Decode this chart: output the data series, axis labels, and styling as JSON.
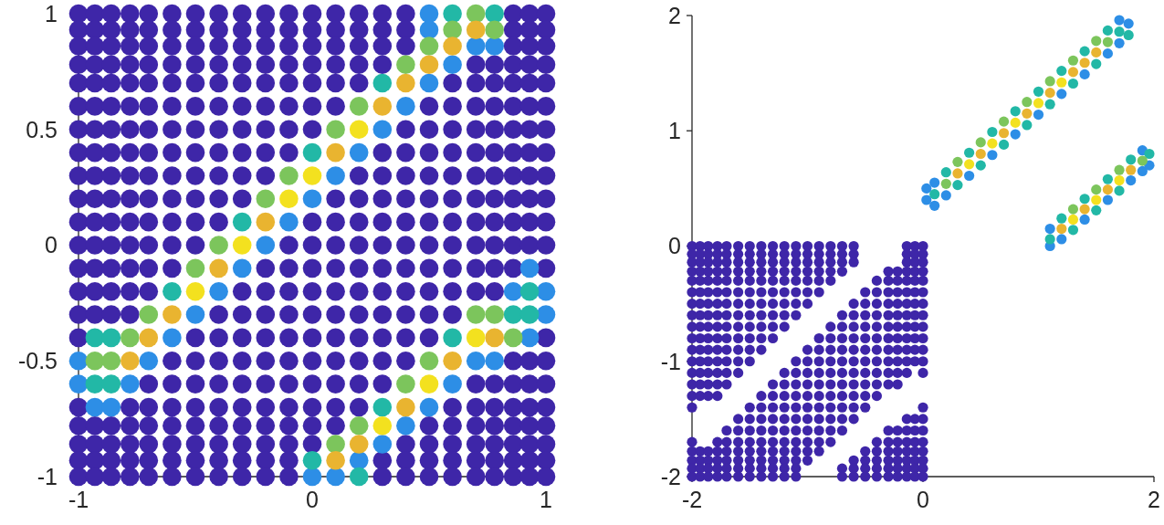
{
  "chart_data": [
    {
      "type": "scatter",
      "xlim": [
        -1,
        1
      ],
      "ylim": [
        -1,
        1
      ],
      "xticks": [
        -1,
        0,
        1
      ],
      "yticks": [
        -1,
        -0.5,
        0,
        0.5,
        1
      ],
      "marker": "circle",
      "series": [
        {
          "color": "#3e26a8",
          "x": [
            -1,
            -0.93,
            -0.86,
            -0.78,
            -0.7,
            -0.6,
            -0.5,
            -0.4,
            -0.3,
            -0.2,
            -0.1,
            0,
            0.1,
            0.2,
            0.3,
            0.4,
            0.86,
            0.93,
            1,
            -1,
            -0.93,
            -0.86,
            -0.78,
            -0.7,
            -0.6,
            -0.5,
            -0.4,
            -0.3,
            -0.2,
            -0.1,
            0,
            0.1,
            0.2,
            0.3,
            0.4,
            0.86,
            0.93,
            1,
            -1,
            -0.93,
            -0.86,
            -0.78,
            -0.7,
            -0.6,
            -0.5,
            -0.4,
            -0.3,
            -0.2,
            -0.1,
            0,
            0.1,
            0.2,
            0.3,
            0.4,
            0.86,
            0.93,
            1,
            -1,
            -0.93,
            -0.86,
            -0.78,
            -0.7,
            -0.6,
            -0.5,
            -0.4,
            -0.3,
            -0.2,
            -0.1,
            0,
            0.1,
            0.2,
            0.3,
            0.7,
            0.78,
            0.86,
            0.93,
            1,
            -1,
            -0.93,
            -0.86,
            -0.78,
            -0.7,
            -0.6,
            -0.5,
            -0.4,
            -0.3,
            -0.2,
            -0.1,
            0,
            0.1,
            0.2,
            0.6,
            0.7,
            0.78,
            0.86,
            0.93,
            1,
            -1,
            -0.93,
            -0.86,
            -0.78,
            -0.7,
            -0.6,
            -0.5,
            -0.4,
            -0.3,
            -0.2,
            -0.1,
            0,
            0.1,
            0.5,
            0.6,
            0.7,
            0.78,
            0.86,
            0.93,
            1,
            -1,
            -0.93,
            -0.86,
            -0.78,
            -0.7,
            -0.6,
            -0.5,
            -0.4,
            -0.3,
            -0.2,
            -0.1,
            0,
            0.4,
            0.5,
            0.6,
            0.7,
            0.78,
            0.86,
            0.93,
            1,
            -1,
            -0.93,
            -0.86,
            -0.78,
            -0.7,
            -0.6,
            -0.5,
            -0.4,
            -0.3,
            -0.2,
            -0.1,
            0.3,
            0.4,
            0.5,
            0.6,
            0.7,
            0.78,
            0.86,
            0.93,
            1,
            -1,
            -0.93,
            -0.86,
            -0.78,
            -0.7,
            -0.6,
            -0.5,
            -0.4,
            -0.3,
            -0.2,
            0.2,
            0.3,
            0.4,
            0.5,
            0.6,
            0.7,
            0.78,
            0.86,
            0.93,
            1,
            -1,
            -0.93,
            -0.86,
            -0.78,
            -0.7,
            -0.6,
            -0.5,
            -0.4,
            -0.3,
            0.1,
            0.2,
            0.3,
            0.4,
            0.5,
            0.6,
            0.7,
            0.78,
            0.86,
            0.93,
            1,
            -1,
            -0.93,
            -0.86,
            -0.78,
            -0.7,
            -0.6,
            -0.5,
            -0.4,
            0,
            0.1,
            0.2,
            0.3,
            0.4,
            0.5,
            0.6,
            0.7,
            0.78,
            0.86,
            0.93,
            1,
            -1,
            -0.93,
            -0.86,
            -0.78,
            -0.7,
            -0.6,
            -0.5,
            -0.1,
            0,
            0.1,
            0.2,
            0.3,
            0.4,
            0.5,
            0.6,
            0.7,
            0.78,
            0.86,
            0.93,
            1,
            -1,
            -0.93,
            -0.86,
            -0.78,
            -0.7,
            -0.6,
            -0.2,
            -0.1,
            0,
            0.1,
            0.2,
            0.3,
            0.4,
            0.5,
            0.6,
            0.7,
            0.78,
            0.86,
            1,
            -1,
            -0.93,
            -0.86,
            -0.78,
            -0.7,
            -0.3,
            -0.2,
            -0.1,
            0,
            0.1,
            0.2,
            0.3,
            0.4,
            0.5,
            0.6,
            0.7,
            0.78,
            -1,
            -0.93,
            -0.86,
            -0.78,
            -0.4,
            -0.3,
            -0.2,
            -0.1,
            0,
            0.1,
            0.2,
            0.3,
            0.4,
            0.5,
            0.6,
            -1,
            -0.5,
            -0.4,
            -0.3,
            -0.2,
            -0.1,
            0,
            0.1,
            0.2,
            0.3,
            0.4,
            0.5,
            1,
            -0.6,
            -0.5,
            -0.4,
            -0.3,
            -0.2,
            -0.1,
            0,
            0.1,
            0.2,
            0.3,
            0.4,
            0.86,
            0.93,
            1,
            -0.7,
            -0.6,
            -0.5,
            -0.4,
            -0.3,
            -0.2,
            -0.1,
            0,
            0.1,
            0.2,
            0.3,
            0.7,
            0.78,
            0.86,
            0.93,
            1,
            -1,
            -0.78,
            -0.7,
            -0.6,
            -0.5,
            -0.4,
            -0.3,
            -0.2,
            -0.1,
            0,
            0.1,
            0.2,
            0.6,
            0.7,
            0.78,
            0.86,
            0.93,
            1,
            -1,
            -0.93,
            -0.86,
            -0.78,
            -0.7,
            -0.6,
            -0.5,
            -0.4,
            -0.3,
            -0.2,
            -0.1,
            0,
            0.1,
            0.5,
            0.6,
            0.7,
            0.78,
            0.86,
            0.93,
            1,
            -1,
            -0.93,
            -0.86,
            -0.78,
            -0.7,
            -0.6,
            -0.5,
            -0.4,
            -0.3,
            -0.2,
            -0.1,
            0,
            0.4,
            0.5,
            0.6,
            0.7,
            0.78,
            0.86,
            0.93,
            1,
            -1,
            -0.93,
            -0.86,
            -0.78,
            -0.7,
            -0.6,
            -0.5,
            -0.4,
            -0.3,
            -0.2,
            -0.1,
            0.3,
            0.4,
            0.5,
            0.6,
            0.7,
            0.78,
            0.86,
            0.93,
            1,
            -1,
            -0.93,
            -0.86,
            -0.78,
            -0.7,
            -0.6,
            -0.5,
            -0.4,
            -0.3,
            -0.2,
            -0.1,
            0.3,
            0.4,
            0.5,
            0.6,
            0.7,
            0.78,
            0.86,
            0.93,
            1
          ],
          "values": [
            1,
            1,
            1,
            1,
            1,
            1,
            1,
            1,
            1,
            1,
            1,
            1,
            1,
            1,
            1,
            1,
            1,
            1,
            1,
            0.93,
            0.93,
            0.93,
            0.93,
            0.93,
            0.93,
            0.93,
            0.93,
            0.93,
            0.93,
            0.93,
            0.93,
            0.93,
            0.93,
            0.93,
            0.93,
            0.93,
            0.93,
            0.93,
            0.86,
            0.86,
            0.86,
            0.86,
            0.86,
            0.86,
            0.86,
            0.86,
            0.86,
            0.86,
            0.86,
            0.86,
            0.86,
            0.86,
            0.86,
            0.86,
            0.86,
            0.86,
            0.86,
            0.78,
            0.78,
            0.78,
            0.78,
            0.78,
            0.78,
            0.78,
            0.78,
            0.78,
            0.78,
            0.78,
            0.78,
            0.78,
            0.78,
            0.78,
            0.78,
            0.78,
            0.78,
            0.78,
            0.78,
            0.7,
            0.7,
            0.7,
            0.7,
            0.7,
            0.7,
            0.7,
            0.7,
            0.7,
            0.7,
            0.7,
            0.7,
            0.7,
            0.7,
            0.7,
            0.7,
            0.7,
            0.7,
            0.7,
            0.7,
            0.6,
            0.6,
            0.6,
            0.6,
            0.6,
            0.6,
            0.6,
            0.6,
            0.6,
            0.6,
            0.6,
            0.6,
            0.6,
            0.6,
            0.6,
            0.6,
            0.6,
            0.6,
            0.6,
            0.6,
            0.5,
            0.5,
            0.5,
            0.5,
            0.5,
            0.5,
            0.5,
            0.5,
            0.5,
            0.5,
            0.5,
            0.5,
            0.5,
            0.5,
            0.5,
            0.5,
            0.5,
            0.5,
            0.5,
            0.5,
            0.4,
            0.4,
            0.4,
            0.4,
            0.4,
            0.4,
            0.4,
            0.4,
            0.4,
            0.4,
            0.4,
            0.4,
            0.4,
            0.4,
            0.4,
            0.4,
            0.4,
            0.4,
            0.4,
            0.4,
            0.3,
            0.3,
            0.3,
            0.3,
            0.3,
            0.3,
            0.3,
            0.3,
            0.3,
            0.3,
            0.3,
            0.3,
            0.3,
            0.3,
            0.3,
            0.3,
            0.3,
            0.3,
            0.3,
            0.3,
            0.2,
            0.2,
            0.2,
            0.2,
            0.2,
            0.2,
            0.2,
            0.2,
            0.2,
            0.2,
            0.2,
            0.2,
            0.2,
            0.2,
            0.2,
            0.2,
            0.2,
            0.2,
            0.2,
            0.2,
            0.1,
            0.1,
            0.1,
            0.1,
            0.1,
            0.1,
            0.1,
            0.1,
            0.1,
            0.1,
            0.1,
            0.1,
            0.1,
            0.1,
            0.1,
            0.1,
            0.1,
            0.1,
            0.1,
            0.1,
            0,
            0,
            0,
            0,
            0,
            0,
            0,
            0,
            0,
            0,
            0,
            0,
            0,
            0,
            0,
            0,
            0,
            0,
            0,
            0,
            -0.1,
            -0.1,
            -0.1,
            -0.1,
            -0.1,
            -0.1,
            -0.1,
            -0.1,
            -0.1,
            -0.1,
            -0.1,
            -0.1,
            -0.1,
            -0.1,
            -0.1,
            -0.1,
            -0.1,
            -0.1,
            -0.1,
            -0.2,
            -0.2,
            -0.2,
            -0.2,
            -0.2,
            -0.2,
            -0.2,
            -0.2,
            -0.2,
            -0.2,
            -0.2,
            -0.2,
            -0.2,
            -0.2,
            -0.2,
            -0.2,
            -0.2,
            -0.3,
            -0.3,
            -0.3,
            -0.3,
            -0.3,
            -0.3,
            -0.3,
            -0.3,
            -0.3,
            -0.3,
            -0.3,
            -0.3,
            -0.3,
            -0.3,
            -0.3,
            -0.4,
            -0.4,
            -0.4,
            -0.4,
            -0.4,
            -0.4,
            -0.4,
            -0.4,
            -0.4,
            -0.4,
            -0.4,
            -0.4,
            -0.4,
            -0.5,
            -0.5,
            -0.5,
            -0.5,
            -0.5,
            -0.5,
            -0.5,
            -0.5,
            -0.5,
            -0.5,
            -0.5,
            -0.5,
            -0.5,
            -0.5,
            -0.6,
            -0.6,
            -0.6,
            -0.6,
            -0.6,
            -0.6,
            -0.6,
            -0.6,
            -0.6,
            -0.6,
            -0.6,
            -0.6,
            -0.6,
            -0.6,
            -0.6,
            -0.6,
            -0.7,
            -0.7,
            -0.7,
            -0.7,
            -0.7,
            -0.7,
            -0.7,
            -0.7,
            -0.7,
            -0.7,
            -0.7,
            -0.7,
            -0.7,
            -0.7,
            -0.7,
            -0.7,
            -0.7,
            -0.7,
            -0.78,
            -0.78,
            -0.78,
            -0.78,
            -0.78,
            -0.78,
            -0.78,
            -0.78,
            -0.78,
            -0.78,
            -0.78,
            -0.78,
            -0.78,
            -0.78,
            -0.78,
            -0.78,
            -0.78,
            -0.78,
            -0.78,
            -0.78,
            -0.86,
            -0.86,
            -0.86,
            -0.86,
            -0.86,
            -0.86,
            -0.86,
            -0.86,
            -0.86,
            -0.86,
            -0.86,
            -0.86,
            -0.86,
            -0.86,
            -0.86,
            -0.86,
            -0.86,
            -0.86,
            -0.86,
            -0.86,
            -0.93,
            -0.93,
            -0.93,
            -0.93,
            -0.93,
            -0.93,
            -0.93,
            -0.93,
            -0.93,
            -0.93,
            -0.93,
            -0.93,
            -0.93,
            -0.93,
            -0.93,
            -0.93,
            -0.93,
            -0.93,
            -0.93,
            -0.93,
            -1,
            -1,
            -1,
            -1,
            -1,
            -1,
            -1,
            -1,
            -1,
            -1,
            -1,
            -1,
            -1,
            -1,
            -1,
            -1,
            -1,
            -1,
            -1,
            -1
          ]
        },
        {
          "color": "#2d8ee6",
          "x": [
            0.5,
            0.5,
            0.7,
            0.78,
            0.6,
            0.5,
            0.4,
            0.3,
            0.2,
            0.1,
            0,
            -0.1,
            -0.2,
            -0.3,
            0.93,
            -0.4,
            0.86,
            1,
            -0.5,
            1,
            -0.6,
            0.93,
            -1,
            -0.7,
            0.7,
            0.78,
            -1,
            -0.78,
            0.6,
            -0.93,
            -0.86,
            0.5,
            0.4,
            0.3,
            0.2,
            0,
            0.1
          ],
          "values": [
            1,
            0.93,
            0.86,
            0.86,
            0.78,
            0.7,
            0.6,
            0.5,
            0.4,
            0.3,
            0.2,
            0.1,
            0,
            -0.1,
            -0.1,
            -0.2,
            -0.2,
            -0.2,
            -0.3,
            -0.3,
            -0.4,
            -0.4,
            -0.5,
            -0.5,
            -0.5,
            -0.5,
            -0.6,
            -0.6,
            -0.6,
            -0.7,
            -0.7,
            -0.7,
            -0.78,
            -0.86,
            -0.93,
            -1,
            -1
          ]
        },
        {
          "color": "#22b8a6",
          "x": [
            0.6,
            0.78,
            0.3,
            0,
            -0.3,
            -0.6,
            0.93,
            0.86,
            0.93,
            -0.93,
            -0.86,
            0.6,
            -0.93,
            -0.86,
            0.3,
            0,
            0.2
          ],
          "values": [
            1,
            1,
            0.7,
            0.4,
            0.1,
            -0.2,
            -0.2,
            -0.3,
            -0.3,
            -0.4,
            -0.4,
            -0.4,
            -0.6,
            -0.6,
            -0.7,
            -0.93,
            -1
          ]
        },
        {
          "color": "#7cc55c",
          "x": [
            0.7,
            0.6,
            0.78,
            0.5,
            0.4,
            0.2,
            0.1,
            -0.1,
            -0.2,
            -0.4,
            -0.5,
            -0.7,
            0.7,
            0.78,
            -0.78,
            0.86,
            -0.93,
            -0.86,
            0.5,
            0.4,
            0.2,
            0.1
          ],
          "values": [
            1,
            0.93,
            0.93,
            0.86,
            0.78,
            0.6,
            0.5,
            0.3,
            0.2,
            0,
            -0.1,
            -0.3,
            -0.3,
            -0.3,
            -0.4,
            -0.4,
            -0.5,
            -0.5,
            -0.5,
            -0.6,
            -0.78,
            -0.86
          ]
        },
        {
          "color": "#e9b430",
          "x": [
            0.7,
            0.6,
            0.5,
            0.4,
            0.3,
            0.1,
            -0.2,
            -0.4,
            -0.6,
            -0.7,
            0.78,
            -0.78,
            0.6,
            0.4,
            0.2,
            0.1
          ],
          "values": [
            0.93,
            0.86,
            0.78,
            0.7,
            0.6,
            0.4,
            0.1,
            -0.1,
            -0.3,
            -0.4,
            -0.4,
            -0.5,
            -0.5,
            -0.7,
            -0.86,
            -0.93
          ]
        },
        {
          "color": "#f3e11f",
          "x": [
            0.2,
            0,
            -0.1,
            -0.3,
            -0.5,
            0.7,
            0.5,
            0.3
          ],
          "values": [
            0.5,
            0.3,
            0.2,
            0,
            -0.2,
            -0.4,
            -0.6,
            -0.78
          ]
        }
      ]
    },
    {
      "type": "scatter",
      "xlim": [
        -2,
        2
      ],
      "ylim": [
        -2,
        2
      ],
      "xticks": [
        -2,
        0,
        2
      ],
      "yticks": [
        -2,
        -1,
        0,
        1,
        2
      ],
      "marker": "circle",
      "series": [
        {
          "color": "#3e26a8",
          "x": [
            -2,
            -1.93,
            -1.86,
            -1.78,
            -1.7,
            -1.6,
            -1.5,
            -1.4,
            -1.3,
            -1.2,
            -1.1,
            -1,
            -0.9,
            -0.8,
            -0.7,
            -0.6,
            -0.14,
            -0.07,
            0,
            -2,
            -1.93,
            -1.86,
            -1.78,
            -1.7,
            -1.6,
            -1.5,
            -1.4,
            -1.3,
            -1.2,
            -1.1,
            -1,
            -0.9,
            -0.8,
            -0.7,
            -0.6,
            -0.14,
            -0.07,
            0,
            -2,
            -1.93,
            -1.86,
            -1.78,
            -1.7,
            -1.6,
            -1.5,
            -1.4,
            -1.3,
            -1.2,
            -1.1,
            -1,
            -0.9,
            -0.8,
            -0.7,
            -0.6,
            -0.14,
            -0.07,
            0,
            -2,
            -1.93,
            -1.86,
            -1.78,
            -1.7,
            -1.6,
            -1.5,
            -1.4,
            -1.3,
            -1.2,
            -1.1,
            -1,
            -0.9,
            -0.8,
            -0.7,
            -0.3,
            -0.22,
            -0.14,
            -0.07,
            0,
            -2,
            -1.93,
            -1.86,
            -1.78,
            -1.7,
            -1.6,
            -1.5,
            -1.4,
            -1.3,
            -1.2,
            -1.1,
            -1,
            -0.9,
            -0.8,
            -0.4,
            -0.3,
            -0.22,
            -0.14,
            -0.07,
            0,
            -2,
            -1.93,
            -1.86,
            -1.78,
            -1.7,
            -1.6,
            -1.5,
            -1.4,
            -1.3,
            -1.2,
            -1.1,
            -1,
            -0.9,
            -0.5,
            -0.4,
            -0.3,
            -0.22,
            -0.14,
            -0.07,
            0,
            -2,
            -1.93,
            -1.86,
            -1.78,
            -1.7,
            -1.6,
            -1.5,
            -1.4,
            -1.3,
            -1.2,
            -1.1,
            -1,
            -0.6,
            -0.5,
            -0.4,
            -0.3,
            -0.22,
            -0.14,
            -0.07,
            0,
            -2,
            -1.93,
            -1.86,
            -1.78,
            -1.7,
            -1.6,
            -1.5,
            -1.4,
            -1.3,
            -1.2,
            -1.1,
            -0.7,
            -0.6,
            -0.5,
            -0.4,
            -0.3,
            -0.22,
            -0.14,
            -0.07,
            0,
            -2,
            -1.93,
            -1.86,
            -1.78,
            -1.7,
            -1.6,
            -1.5,
            -1.4,
            -1.3,
            -1.2,
            -0.8,
            -0.7,
            -0.6,
            -0.5,
            -0.4,
            -0.3,
            -0.22,
            -0.14,
            -0.07,
            0,
            -2,
            -1.93,
            -1.86,
            -1.78,
            -1.7,
            -1.6,
            -1.5,
            -1.4,
            -1.3,
            -0.9,
            -0.8,
            -0.7,
            -0.6,
            -0.5,
            -0.4,
            -0.3,
            -0.22,
            -0.14,
            -0.07,
            0,
            -2,
            -1.93,
            -1.86,
            -1.78,
            -1.7,
            -1.6,
            -1.5,
            -1.4,
            -1,
            -0.9,
            -0.8,
            -0.7,
            -0.6,
            -0.5,
            -0.4,
            -0.3,
            -0.22,
            -0.14,
            -0.07,
            0,
            -2,
            -1.93,
            -1.86,
            -1.78,
            -1.7,
            -1.6,
            -1.5,
            -1.1,
            -1,
            -0.9,
            -0.8,
            -0.7,
            -0.6,
            -0.5,
            -0.4,
            -0.3,
            -0.22,
            -0.14,
            -0.07,
            0,
            -2,
            -1.93,
            -1.86,
            -1.78,
            -1.7,
            -1.6,
            -1.2,
            -1.1,
            -1,
            -0.9,
            -0.8,
            -0.7,
            -0.6,
            -0.5,
            -0.4,
            -0.3,
            -0.22,
            -0.14,
            0,
            -2,
            -1.93,
            -1.86,
            -1.78,
            -1.7,
            -1.3,
            -1.2,
            -1.1,
            -1,
            -0.9,
            -0.8,
            -0.7,
            -0.6,
            -0.5,
            -0.4,
            -0.3,
            -0.22,
            -2,
            -1.93,
            -1.86,
            -1.78,
            -1.4,
            -1.3,
            -1.2,
            -1.1,
            -1,
            -0.9,
            -0.8,
            -0.7,
            -0.6,
            -0.5,
            -0.4,
            -2,
            -1.5,
            -1.4,
            -1.3,
            -1.2,
            -1.1,
            -1,
            -0.9,
            -0.8,
            -0.7,
            -0.6,
            -0.5,
            0,
            -1.6,
            -1.5,
            -1.4,
            -1.3,
            -1.2,
            -1.1,
            -1,
            -0.9,
            -0.8,
            -0.7,
            -0.6,
            -0.14,
            -0.07,
            0,
            -1.7,
            -1.6,
            -1.5,
            -1.4,
            -1.3,
            -1.2,
            -1.1,
            -1,
            -0.9,
            -0.8,
            -0.7,
            -0.3,
            -0.22,
            -0.14,
            -0.07,
            0,
            -2,
            -1.78,
            -1.7,
            -1.6,
            -1.5,
            -1.4,
            -1.3,
            -1.2,
            -1.1,
            -1,
            -0.9,
            -0.8,
            -0.4,
            -0.3,
            -0.22,
            -0.14,
            -0.07,
            0,
            -2,
            -1.93,
            -1.86,
            -1.78,
            -1.7,
            -1.6,
            -1.5,
            -1.4,
            -1.3,
            -1.2,
            -1.1,
            -1,
            -0.9,
            -0.5,
            -0.4,
            -0.3,
            -0.22,
            -0.14,
            -0.07,
            0,
            -2,
            -1.93,
            -1.86,
            -1.78,
            -1.7,
            -1.6,
            -1.5,
            -1.4,
            -1.3,
            -1.2,
            -1.1,
            -1,
            -0.6,
            -0.5,
            -0.4,
            -0.3,
            -0.22,
            -0.14,
            -0.07,
            0,
            -2,
            -1.93,
            -1.86,
            -1.78,
            -1.7,
            -1.6,
            -1.5,
            -1.4,
            -1.3,
            -1.2,
            -1.1,
            -0.7,
            -0.6,
            -0.5,
            -0.4,
            -0.3,
            -0.22,
            -0.14,
            -0.07,
            0,
            -2,
            -1.93,
            -1.86,
            -1.78,
            -1.7,
            -1.6,
            -1.5,
            -1.4,
            -1.3,
            -1.2,
            -1.1,
            -0.7,
            -0.6,
            -0.5,
            -0.4,
            -0.3,
            -0.22,
            -0.14,
            -0.07,
            0
          ],
          "values": [
            0,
            0,
            0,
            0,
            0,
            0,
            0,
            0,
            0,
            0,
            0,
            0,
            0,
            0,
            0,
            0,
            0,
            0,
            0,
            -0.07,
            -0.07,
            -0.07,
            -0.07,
            -0.07,
            -0.07,
            -0.07,
            -0.07,
            -0.07,
            -0.07,
            -0.07,
            -0.07,
            -0.07,
            -0.07,
            -0.07,
            -0.07,
            -0.07,
            -0.07,
            -0.07,
            -0.14,
            -0.14,
            -0.14,
            -0.14,
            -0.14,
            -0.14,
            -0.14,
            -0.14,
            -0.14,
            -0.14,
            -0.14,
            -0.14,
            -0.14,
            -0.14,
            -0.14,
            -0.14,
            -0.14,
            -0.14,
            -0.14,
            -0.22,
            -0.22,
            -0.22,
            -0.22,
            -0.22,
            -0.22,
            -0.22,
            -0.22,
            -0.22,
            -0.22,
            -0.22,
            -0.22,
            -0.22,
            -0.22,
            -0.22,
            -0.22,
            -0.22,
            -0.22,
            -0.22,
            -0.22,
            -0.3,
            -0.3,
            -0.3,
            -0.3,
            -0.3,
            -0.3,
            -0.3,
            -0.3,
            -0.3,
            -0.3,
            -0.3,
            -0.3,
            -0.3,
            -0.3,
            -0.3,
            -0.3,
            -0.3,
            -0.3,
            -0.3,
            -0.3,
            -0.4,
            -0.4,
            -0.4,
            -0.4,
            -0.4,
            -0.4,
            -0.4,
            -0.4,
            -0.4,
            -0.4,
            -0.4,
            -0.4,
            -0.4,
            -0.4,
            -0.4,
            -0.4,
            -0.4,
            -0.4,
            -0.4,
            -0.4,
            -0.5,
            -0.5,
            -0.5,
            -0.5,
            -0.5,
            -0.5,
            -0.5,
            -0.5,
            -0.5,
            -0.5,
            -0.5,
            -0.5,
            -0.5,
            -0.5,
            -0.5,
            -0.5,
            -0.5,
            -0.5,
            -0.5,
            -0.5,
            -0.6,
            -0.6,
            -0.6,
            -0.6,
            -0.6,
            -0.6,
            -0.6,
            -0.6,
            -0.6,
            -0.6,
            -0.6,
            -0.6,
            -0.6,
            -0.6,
            -0.6,
            -0.6,
            -0.6,
            -0.6,
            -0.6,
            -0.6,
            -0.7,
            -0.7,
            -0.7,
            -0.7,
            -0.7,
            -0.7,
            -0.7,
            -0.7,
            -0.7,
            -0.7,
            -0.7,
            -0.7,
            -0.7,
            -0.7,
            -0.7,
            -0.7,
            -0.7,
            -0.7,
            -0.7,
            -0.7,
            -0.8,
            -0.8,
            -0.8,
            -0.8,
            -0.8,
            -0.8,
            -0.8,
            -0.8,
            -0.8,
            -0.8,
            -0.8,
            -0.8,
            -0.8,
            -0.8,
            -0.8,
            -0.8,
            -0.8,
            -0.8,
            -0.8,
            -0.8,
            -0.9,
            -0.9,
            -0.9,
            -0.9,
            -0.9,
            -0.9,
            -0.9,
            -0.9,
            -0.9,
            -0.9,
            -0.9,
            -0.9,
            -0.9,
            -0.9,
            -0.9,
            -0.9,
            -0.9,
            -0.9,
            -0.9,
            -0.9,
            -1,
            -1,
            -1,
            -1,
            -1,
            -1,
            -1,
            -1,
            -1,
            -1,
            -1,
            -1,
            -1,
            -1,
            -1,
            -1,
            -1,
            -1,
            -1,
            -1,
            -1.1,
            -1.1,
            -1.1,
            -1.1,
            -1.1,
            -1.1,
            -1.1,
            -1.1,
            -1.1,
            -1.1,
            -1.1,
            -1.1,
            -1.1,
            -1.1,
            -1.1,
            -1.1,
            -1.1,
            -1.1,
            -1.1,
            -1.2,
            -1.2,
            -1.2,
            -1.2,
            -1.2,
            -1.2,
            -1.2,
            -1.2,
            -1.2,
            -1.2,
            -1.2,
            -1.2,
            -1.2,
            -1.2,
            -1.2,
            -1.2,
            -1.2,
            -1.3,
            -1.3,
            -1.3,
            -1.3,
            -1.3,
            -1.3,
            -1.3,
            -1.3,
            -1.3,
            -1.3,
            -1.3,
            -1.3,
            -1.3,
            -1.3,
            -1.3,
            -1.4,
            -1.4,
            -1.4,
            -1.4,
            -1.4,
            -1.4,
            -1.4,
            -1.4,
            -1.4,
            -1.4,
            -1.4,
            -1.4,
            -1.4,
            -1.5,
            -1.5,
            -1.5,
            -1.5,
            -1.5,
            -1.5,
            -1.5,
            -1.5,
            -1.5,
            -1.5,
            -1.5,
            -1.5,
            -1.5,
            -1.5,
            -1.6,
            -1.6,
            -1.6,
            -1.6,
            -1.6,
            -1.6,
            -1.6,
            -1.6,
            -1.6,
            -1.6,
            -1.6,
            -1.6,
            -1.6,
            -1.6,
            -1.6,
            -1.6,
            -1.7,
            -1.7,
            -1.7,
            -1.7,
            -1.7,
            -1.7,
            -1.7,
            -1.7,
            -1.7,
            -1.7,
            -1.7,
            -1.7,
            -1.7,
            -1.7,
            -1.7,
            -1.7,
            -1.7,
            -1.7,
            -1.78,
            -1.78,
            -1.78,
            -1.78,
            -1.78,
            -1.78,
            -1.78,
            -1.78,
            -1.78,
            -1.78,
            -1.78,
            -1.78,
            -1.78,
            -1.78,
            -1.78,
            -1.78,
            -1.78,
            -1.78,
            -1.78,
            -1.78,
            -1.86,
            -1.86,
            -1.86,
            -1.86,
            -1.86,
            -1.86,
            -1.86,
            -1.86,
            -1.86,
            -1.86,
            -1.86,
            -1.86,
            -1.86,
            -1.86,
            -1.86,
            -1.86,
            -1.86,
            -1.86,
            -1.86,
            -1.86,
            -1.93,
            -1.93,
            -1.93,
            -1.93,
            -1.93,
            -1.93,
            -1.93,
            -1.93,
            -1.93,
            -1.93,
            -1.93,
            -1.93,
            -1.93,
            -1.93,
            -1.93,
            -1.93,
            -1.93,
            -1.93,
            -1.93,
            -1.93,
            -2,
            -2,
            -2,
            -2,
            -2,
            -2,
            -2,
            -2,
            -2,
            -2,
            -2,
            -2,
            -2,
            -2,
            -2,
            -2,
            -2,
            -2,
            -2,
            -2
          ]
        },
        {
          "color": "#2d8ee6",
          "x": [
            0.1,
            1.7,
            0.1,
            0.2,
            0.4,
            0.6,
            0.8,
            1,
            1.2,
            1.4,
            1.6,
            1.7,
            0.03,
            0.03,
            1.78,
            1.1,
            1.9,
            1.1,
            1.2,
            1.4,
            1.6,
            1.8,
            1.9,
            1.96
          ],
          "values": [
            0.55,
            1.96,
            0.35,
            0.44,
            0.61,
            0.79,
            0.97,
            1.14,
            1.32,
            1.49,
            1.67,
            1.76,
            0.4,
            0.5,
            1.93,
            0.15,
            0.83,
            0,
            0.06,
            0.23,
            0.4,
            0.57,
            0.65,
            0.7
          ]
        },
        {
          "color": "#22b8a6",
          "x": [
            0.1,
            1.7,
            0.2,
            0.4,
            0.6,
            0.8,
            1,
            1.2,
            1.4,
            1.6,
            0.3,
            0.5,
            0.7,
            0.9,
            1.1,
            1.3,
            1.5,
            1.78,
            1.1,
            1.2,
            1.4,
            1.6,
            1.8,
            1.3,
            1.5,
            1.7,
            1.96
          ],
          "values": [
            0.45,
            1.86,
            0.64,
            0.81,
            0.99,
            1.17,
            1.34,
            1.52,
            1.69,
            1.87,
            0.53,
            0.7,
            0.88,
            1.05,
            1.23,
            1.41,
            1.58,
            1.83,
            0.06,
            0.24,
            0.41,
            0.58,
            0.75,
            0.14,
            0.31,
            0.48,
            0.8
          ]
        },
        {
          "color": "#7cc55c",
          "x": [
            0.2,
            1.6,
            0.3,
            0.5,
            0.7,
            0.9,
            1.1,
            1.3,
            1.5,
            1.9,
            1.3,
            1.5,
            1.7
          ],
          "values": [
            0.54,
            1.77,
            0.73,
            0.9,
            1.08,
            1.25,
            1.43,
            1.61,
            1.78,
            0.74,
            0.32,
            0.49,
            0.66
          ]
        },
        {
          "color": "#e9b430",
          "x": [
            0.3,
            0.5,
            0.7,
            0.9,
            1.1,
            1.3,
            1.4,
            1.5,
            1.2,
            1.4,
            1.6,
            1.8
          ],
          "values": [
            0.63,
            0.8,
            0.98,
            1.15,
            1.33,
            1.51,
            1.59,
            1.68,
            0.15,
            0.32,
            0.49,
            0.66
          ]
        },
        {
          "color": "#f3e11f",
          "x": [
            0.4,
            0.6,
            0.8,
            1,
            1.2,
            1.3,
            1.5,
            1.7
          ],
          "values": [
            0.71,
            0.89,
            1.07,
            1.24,
            1.42,
            0.23,
            0.4,
            0.57
          ]
        }
      ]
    }
  ]
}
